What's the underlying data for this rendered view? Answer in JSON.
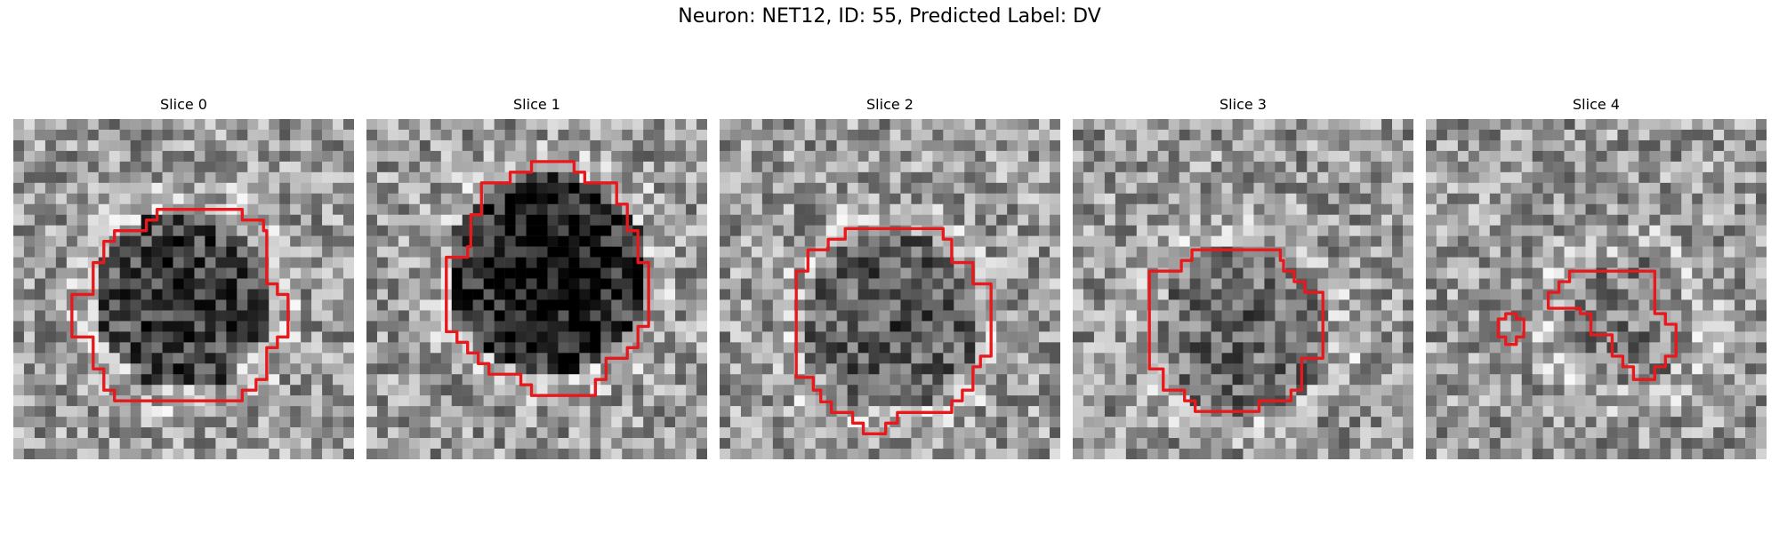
{
  "figure": {
    "title": "Neuron: NET12, ID: 55, Predicted Label: DV"
  },
  "colors": {
    "contour": "#e8191c",
    "colormap": "gray"
  },
  "panels": [
    {
      "label": "Slice 0"
    },
    {
      "label": "Slice 1"
    },
    {
      "label": "Slice 2"
    },
    {
      "label": "Slice 3"
    },
    {
      "label": "Slice 4"
    }
  ]
}
